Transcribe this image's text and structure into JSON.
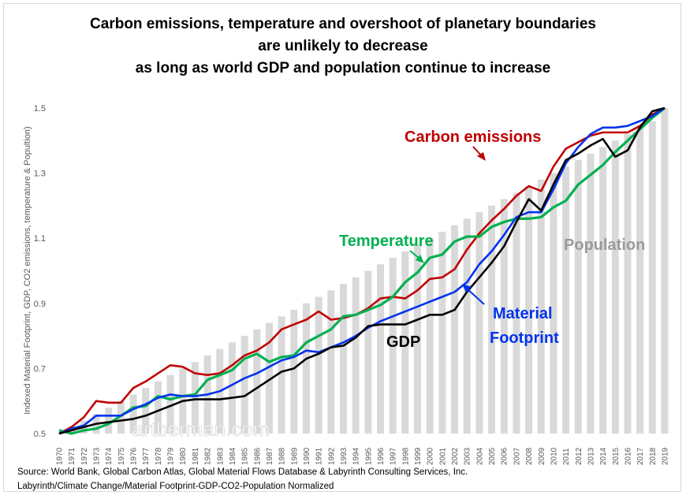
{
  "chart_data": {
    "type": "line",
    "title": [
      "Carbon emissions, temperature and overshoot of planetary boundaries",
      "are unlikely to decrease",
      "as long as world GDP and population continue to increase"
    ],
    "ylabel": "Indexed Material Footprint, GDP, CO2 emissions, temperature & Popultion)",
    "xlabel": "",
    "ylim": [
      0.5,
      1.5
    ],
    "yticks": [
      "0.5",
      "0.7",
      "0.9",
      "1.1",
      "1.3",
      "1.5"
    ],
    "x": [
      1970,
      1971,
      1972,
      1973,
      1974,
      1975,
      1976,
      1977,
      1978,
      1979,
      1980,
      1981,
      1982,
      1983,
      1984,
      1985,
      1986,
      1987,
      1988,
      1989,
      1990,
      1991,
      1992,
      1993,
      1994,
      1995,
      1996,
      1997,
      1998,
      1999,
      2000,
      2001,
      2002,
      2003,
      2004,
      2005,
      2006,
      2007,
      2008,
      2009,
      2010,
      2011,
      2012,
      2013,
      2014,
      2015,
      2016,
      2017,
      2018,
      2019
    ],
    "grid": false,
    "bars": {
      "name": "Population",
      "color": "#d9d9d9",
      "values": [
        0.5,
        0.52,
        0.54,
        0.56,
        0.58,
        0.6,
        0.62,
        0.64,
        0.66,
        0.68,
        0.7,
        0.72,
        0.74,
        0.76,
        0.78,
        0.8,
        0.82,
        0.84,
        0.86,
        0.88,
        0.9,
        0.92,
        0.94,
        0.96,
        0.98,
        1.0,
        1.02,
        1.04,
        1.06,
        1.08,
        1.1,
        1.12,
        1.14,
        1.16,
        1.18,
        1.2,
        1.22,
        1.24,
        1.26,
        1.28,
        1.3,
        1.32,
        1.34,
        1.36,
        1.38,
        1.4,
        1.42,
        1.44,
        1.46,
        1.5
      ]
    },
    "series": [
      {
        "name": "Carbon emissions",
        "color": "#c00000",
        "values": [
          0.5,
          0.52,
          0.55,
          0.6,
          0.595,
          0.595,
          0.64,
          0.66,
          0.685,
          0.71,
          0.705,
          0.685,
          0.68,
          0.685,
          0.71,
          0.74,
          0.755,
          0.78,
          0.82,
          0.835,
          0.85,
          0.875,
          0.85,
          0.855,
          0.865,
          0.885,
          0.915,
          0.92,
          0.915,
          0.94,
          0.975,
          0.98,
          1.005,
          1.065,
          1.115,
          1.155,
          1.19,
          1.23,
          1.26,
          1.245,
          1.32,
          1.375,
          1.395,
          1.415,
          1.425,
          1.425,
          1.425,
          1.445,
          1.48,
          1.5
        ]
      },
      {
        "name": "Temperature",
        "color": "#00b050",
        "values": [
          0.51,
          0.5,
          0.51,
          0.515,
          0.53,
          0.555,
          0.58,
          0.585,
          0.615,
          0.605,
          0.615,
          0.62,
          0.665,
          0.68,
          0.695,
          0.73,
          0.745,
          0.72,
          0.735,
          0.74,
          0.78,
          0.8,
          0.82,
          0.86,
          0.865,
          0.88,
          0.895,
          0.92,
          0.965,
          0.995,
          1.04,
          1.05,
          1.09,
          1.105,
          1.105,
          1.135,
          1.15,
          1.16,
          1.16,
          1.165,
          1.195,
          1.215,
          1.265,
          1.295,
          1.325,
          1.365,
          1.4,
          1.435,
          1.47,
          1.5
        ]
      },
      {
        "name": "Material Footprint",
        "color": "#0033ee",
        "values": [
          0.5,
          0.515,
          0.525,
          0.555,
          0.555,
          0.555,
          0.575,
          0.59,
          0.61,
          0.62,
          0.615,
          0.615,
          0.62,
          0.63,
          0.65,
          0.67,
          0.685,
          0.705,
          0.725,
          0.735,
          0.755,
          0.75,
          0.765,
          0.78,
          0.8,
          0.825,
          0.845,
          0.86,
          0.875,
          0.89,
          0.905,
          0.92,
          0.935,
          0.965,
          1.02,
          1.06,
          1.11,
          1.165,
          1.18,
          1.18,
          1.25,
          1.33,
          1.38,
          1.42,
          1.44,
          1.44,
          1.445,
          1.46,
          1.475,
          1.5
        ]
      },
      {
        "name": "GDP",
        "color": "#000000",
        "values": [
          0.5,
          0.51,
          0.52,
          0.53,
          0.535,
          0.54,
          0.545,
          0.555,
          0.57,
          0.585,
          0.6,
          0.605,
          0.605,
          0.605,
          0.61,
          0.615,
          0.64,
          0.665,
          0.69,
          0.7,
          0.73,
          0.745,
          0.765,
          0.77,
          0.795,
          0.83,
          0.835,
          0.835,
          0.835,
          0.85,
          0.865,
          0.865,
          0.88,
          0.935,
          0.98,
          1.025,
          1.075,
          1.15,
          1.22,
          1.185,
          1.265,
          1.34,
          1.36,
          1.385,
          1.405,
          1.35,
          1.37,
          1.44,
          1.49,
          1.5
        ]
      }
    ],
    "annotations": {
      "carbon": "Carbon emissions",
      "temperature": "Temperature",
      "population": "Population",
      "material": [
        "Material",
        "Footprint"
      ],
      "gdp": "GDP"
    },
    "watermark": "artberman.com",
    "source": [
      "Source:  World Bank, Global Carbon Atlas, Global Material Flows Database & Labyrinth Consulting Services, Inc.",
      "Labyrinth/Climate Change/Material Footprint-GDP-CO2-Population Normalized"
    ]
  }
}
